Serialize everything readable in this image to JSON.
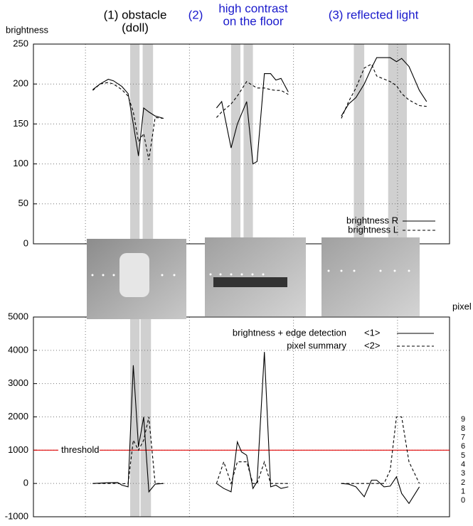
{
  "chart_data": [
    {
      "type": "line",
      "y_label": "brightness",
      "annotations": [
        {
          "lines": [
            "(1) obstacle",
            "(doll)"
          ],
          "color": "#000000"
        },
        {
          "lines": [
            "(2)"
          ],
          "color": "#1a1acc"
        },
        {
          "lines": [
            "high contrast",
            "on the floor"
          ],
          "color": "#1a1acc"
        },
        {
          "lines": [
            "(3) reflected light"
          ],
          "color": "#1a1acc"
        }
      ],
      "x": [
        5.7,
        6.4,
        7.2,
        7.7,
        8.5,
        9.1,
        9.6,
        10.1,
        10.6,
        11.1,
        11.7,
        12.5,
        15,
        17.6,
        18.1,
        19.0,
        19.6,
        20.5,
        21.1,
        21.5,
        22.2,
        22.8,
        23.3,
        23.8,
        24.5,
        27,
        29.6,
        30.3,
        31.0,
        31.8,
        32.5,
        33.0,
        34.3,
        34.9,
        35.4,
        36.1,
        37.1,
        37.8
      ],
      "xlim": [
        0,
        40
      ],
      "xticks": [
        5,
        15,
        25,
        35
      ],
      "ylim": [
        0,
        250
      ],
      "yticks": [
        0,
        50,
        100,
        150,
        200,
        250
      ],
      "grid": true,
      "bands": [
        [
          9.3,
          10.2
        ],
        [
          10.5,
          11.5
        ],
        [
          19.0,
          19.9
        ],
        [
          20.2,
          21.1
        ],
        [
          30.8,
          31.8
        ],
        [
          34.1,
          35.9
        ]
      ],
      "band_color": "#c4c4c4",
      "legend": "lower right",
      "series": [
        {
          "name": "brightness R",
          "color": "#000000",
          "dash": "solid",
          "values": [
            193,
            200,
            206,
            204,
            197,
            188,
            150,
            110,
            170,
            165,
            160,
            157,
            null,
            170,
            178,
            120,
            150,
            178,
            100,
            103,
            213,
            213,
            205,
            207,
            190,
            null,
            160,
            175,
            183,
            200,
            220,
            233,
            233,
            228,
            232,
            222,
            192,
            178
          ]
        },
        {
          "name": "brightness L",
          "color": "#000000",
          "dash": "dashed",
          "values": [
            192,
            200,
            202,
            200,
            193,
            185,
            165,
            128,
            138,
            105,
            158,
            157,
            null,
            158,
            165,
            175,
            185,
            203,
            198,
            195,
            195,
            193,
            192,
            192,
            187,
            null,
            157,
            178,
            195,
            220,
            225,
            210,
            203,
            198,
            188,
            180,
            173,
            172
          ]
        }
      ]
    },
    {
      "type": "line",
      "y2_label": "pixel",
      "x": [
        5.7,
        7.0,
        8.1,
        8.5,
        9.1,
        9.6,
        10.1,
        10.6,
        11.1,
        11.7,
        12.5,
        15,
        17.6,
        18.3,
        19.0,
        19.6,
        20.0,
        20.5,
        21.1,
        21.5,
        22.2,
        22.8,
        23.3,
        23.8,
        24.5,
        27,
        29.6,
        30.3,
        31.0,
        31.8,
        32.5,
        33.0,
        33.7,
        34.3,
        34.9,
        35.4,
        36.1,
        37.1
      ],
      "xlim": [
        0,
        40
      ],
      "xticks": [
        5,
        15,
        25,
        35
      ],
      "ylim": [
        -1000,
        5000
      ],
      "yticks": [
        -1000,
        0,
        1000,
        2000,
        3000,
        4000,
        5000
      ],
      "grid": true,
      "y2lim": [
        -1.8,
        20.4
      ],
      "y2ticks": [
        0,
        1,
        2,
        3,
        4,
        5,
        6,
        7,
        8,
        9
      ],
      "bands": [
        [
          9.3,
          10.2
        ],
        [
          10.3,
          11.3
        ]
      ],
      "band_color": "#c4c4c4",
      "threshold": {
        "value": 1000,
        "label": "threshold",
        "color": "#e00000"
      },
      "legend": "upper right",
      "series": [
        {
          "name": "<1>",
          "label": "brightness + edge detection",
          "color": "#000000",
          "dash": "solid",
          "values": [
            0,
            20,
            30,
            -50,
            -100,
            3550,
            1100,
            2000,
            -250,
            -20,
            0,
            null,
            0,
            -150,
            -250,
            1250,
            950,
            850,
            -150,
            50,
            3950,
            -100,
            -50,
            -150,
            -100,
            null,
            0,
            -20,
            -100,
            -400,
            100,
            100,
            -100,
            -80,
            200,
            -300,
            -600,
            -100
          ]
        },
        {
          "name": "<2>",
          "label": "pixel summary",
          "color": "#000000",
          "dash": "dashed",
          "values": [
            0,
            0,
            0,
            -10,
            0,
            1300,
            1000,
            1300,
            2000,
            0,
            0,
            null,
            0,
            650,
            0,
            650,
            650,
            650,
            0,
            0,
            650,
            0,
            0,
            0,
            0,
            null,
            0,
            0,
            0,
            0,
            0,
            0,
            0,
            400,
            2000,
            2000,
            650,
            0
          ]
        }
      ]
    }
  ]
}
